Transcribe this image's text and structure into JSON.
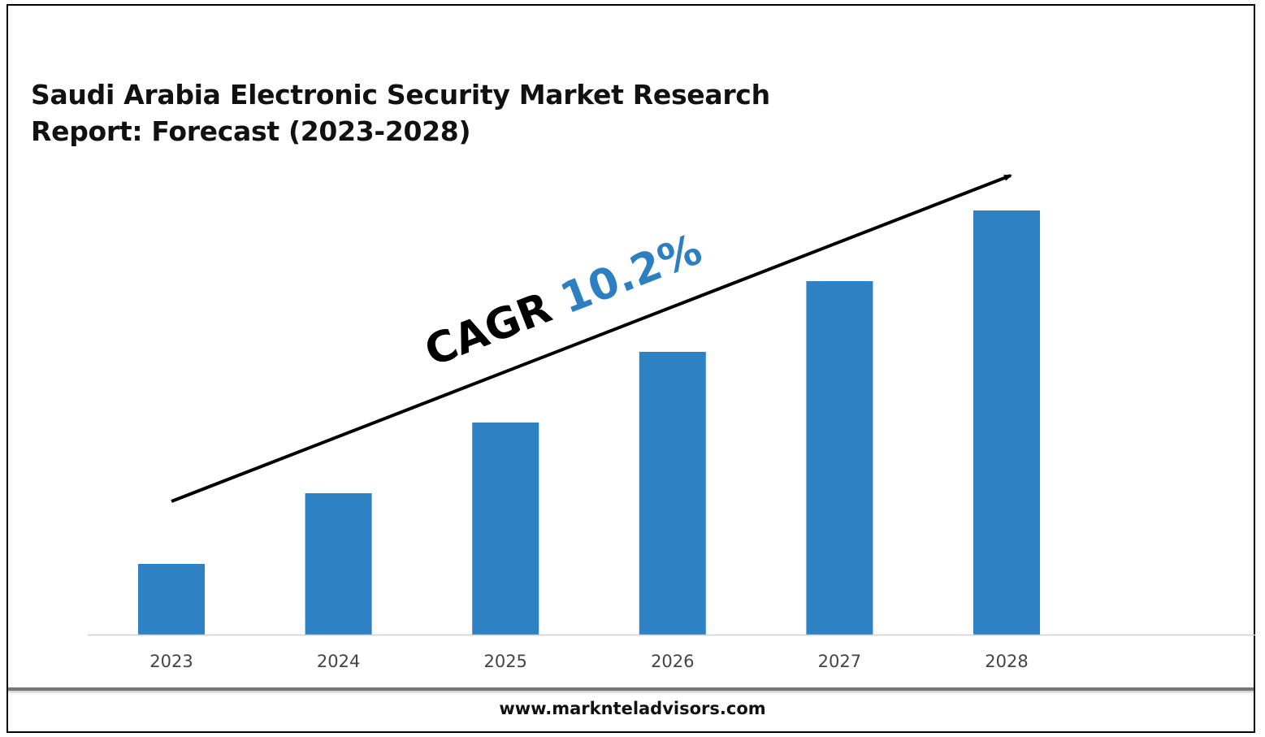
{
  "title_lines": [
    "Saudi Arabia Electronic Security Market Research",
    "Report: Forecast (2023-2028)"
  ],
  "cagr": {
    "label": "CAGR",
    "value": "10.2%"
  },
  "footer": {
    "website": "www.marknteladvisors.com"
  },
  "colors": {
    "bar": "#2e82c3",
    "cagr_value": "#2e7fc1",
    "arrow": "#000000",
    "axis": "#d0d0d0"
  },
  "chart_data": {
    "type": "bar",
    "categories": [
      "2023",
      "2024",
      "2025",
      "2026",
      "2027",
      "2028"
    ],
    "values": [
      1.0,
      2.0,
      3.0,
      4.0,
      5.0,
      6.0
    ],
    "value_note": "relative heights; axis not labeled",
    "title": "Saudi Arabia Electronic Security Market Research Report: Forecast (2023-2028)",
    "annotation": "CAGR 10.2%",
    "ylim": [
      0,
      6.0
    ],
    "grid": false,
    "legend": "none"
  }
}
